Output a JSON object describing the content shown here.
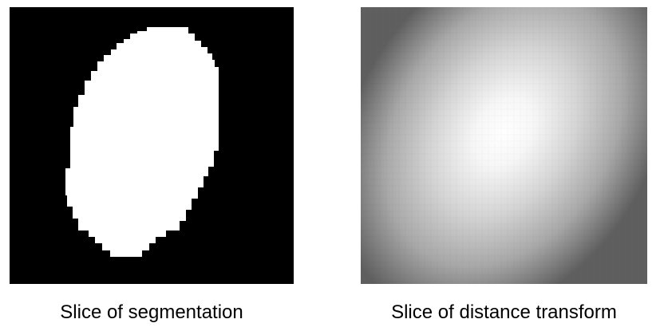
{
  "panels": {
    "segmentation": {
      "caption": "Slice of segmentation",
      "background_color": "#000000",
      "foreground_color": "#ffffff"
    },
    "distance_transform": {
      "caption": "Slice of distance transform",
      "colors": {
        "peak": "#ffffff",
        "mid": "#c9c9c9",
        "edge": "#5a5a5a"
      }
    }
  }
}
